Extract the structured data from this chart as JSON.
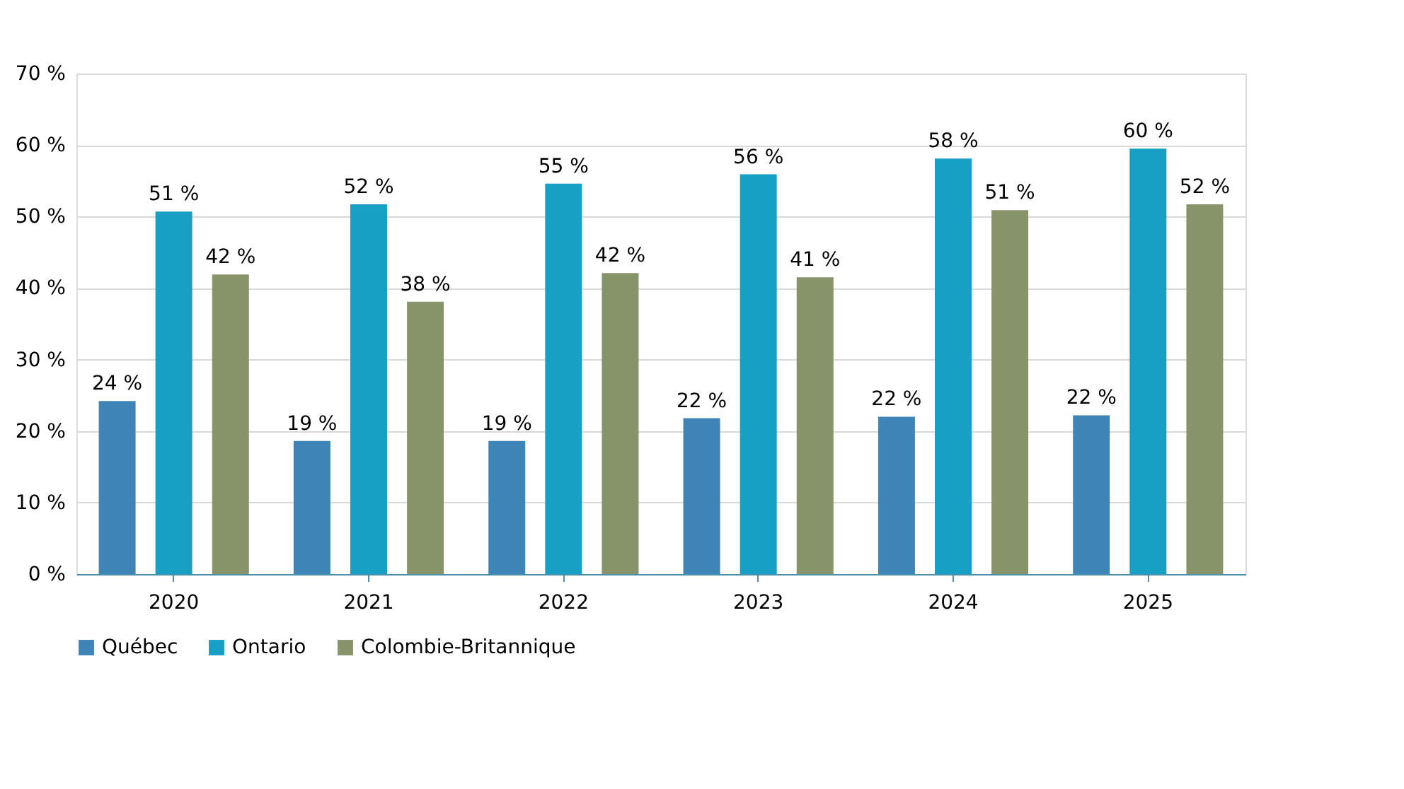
{
  "chart_data": {
    "type": "bar",
    "categories": [
      "2020",
      "2021",
      "2022",
      "2023",
      "2024",
      "2025"
    ],
    "series": [
      {
        "name": "Québec",
        "color": "#3f84b6",
        "values": [
          24.2,
          18.6,
          18.6,
          21.8,
          22.0,
          22.2
        ],
        "value_labels": [
          "24 %",
          "19 %",
          "19 %",
          "22 %",
          "22 %",
          "22 %"
        ]
      },
      {
        "name": "Ontario",
        "color": "#17a0c3",
        "values": [
          50.7,
          51.7,
          54.6,
          55.9,
          58.1,
          59.5
        ],
        "value_labels": [
          "51 %",
          "52 %",
          "55 %",
          "56 %",
          "58 %",
          "60 %"
        ]
      },
      {
        "name": "Colombie-Britannique",
        "color": "#87946a",
        "values": [
          41.9,
          38.1,
          42.1,
          41.5,
          50.9,
          51.7
        ],
        "value_labels": [
          "42 %",
          "38 %",
          "42 %",
          "41 %",
          "51 %",
          "52 %"
        ]
      }
    ],
    "ylim": [
      0,
      70
    ],
    "yticks": [
      {
        "value": 0,
        "label": "0 %"
      },
      {
        "value": 10,
        "label": "10 %"
      },
      {
        "value": 20,
        "label": "20 %"
      },
      {
        "value": 30,
        "label": "30 %"
      },
      {
        "value": 40,
        "label": "40 %"
      },
      {
        "value": 50,
        "label": "50 %"
      },
      {
        "value": 60,
        "label": "60 %"
      },
      {
        "value": 70,
        "label": "70 %"
      }
    ],
    "grid": "y",
    "legend": "bottom"
  }
}
